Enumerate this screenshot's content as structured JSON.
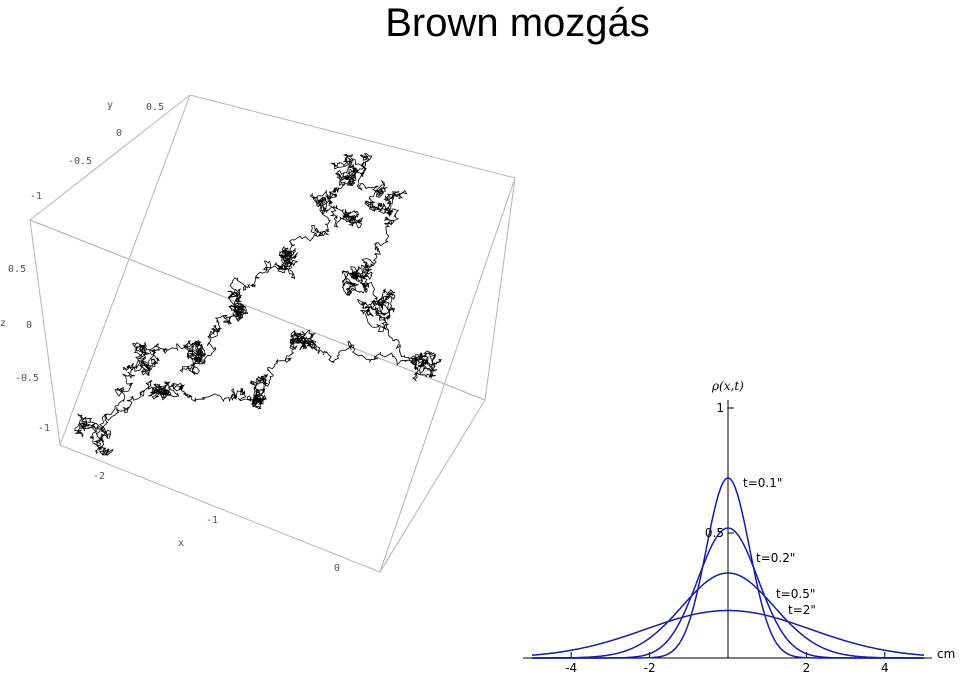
{
  "title": "Brown mozgás",
  "chart_data": [
    {
      "type": "line",
      "subtype": "3d-random-walk",
      "title": "",
      "axes": {
        "x": {
          "label": "x",
          "ticks": [
            "-2",
            "-1",
            "0"
          ],
          "range": [
            -2.5,
            0
          ]
        },
        "y": {
          "label": "y",
          "ticks": [
            "-1",
            "-0.5",
            "0",
            "0.5"
          ],
          "range": [
            -1,
            0.5
          ]
        },
        "z": {
          "label": "z",
          "ticks": [
            "-1",
            "-0.5",
            "0",
            "0.5"
          ],
          "range": [
            -1,
            0.5
          ]
        }
      },
      "steps": 4000,
      "color": "#000000"
    },
    {
      "type": "line",
      "title": "",
      "xlabel": "cm",
      "ylabel": "ρ(x,t)",
      "xlim": [
        -5,
        5
      ],
      "ylim": [
        0,
        1
      ],
      "xticks": [
        "-4",
        "-2",
        "2",
        "4"
      ],
      "yticks": [
        "0.5",
        "1"
      ],
      "color": "#1a1aaa",
      "series": [
        {
          "name": "t=0.1\"",
          "t": 0.1,
          "peak": 0.72
        },
        {
          "name": "t=0.2\"",
          "t": 0.2,
          "peak": 0.52
        },
        {
          "name": "t=0.5\"",
          "t": 0.5,
          "peak": 0.34
        },
        {
          "name": "t=2\"",
          "t": 2,
          "peak": 0.19
        }
      ]
    }
  ]
}
